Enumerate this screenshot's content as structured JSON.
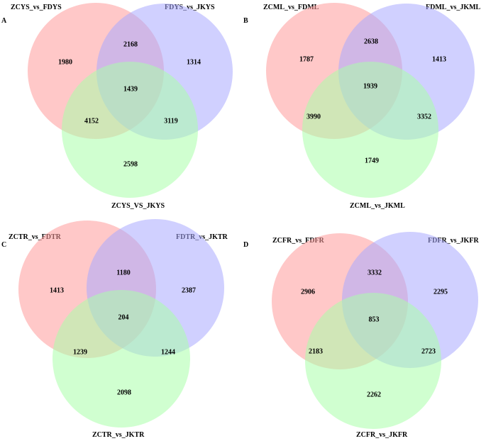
{
  "colors": {
    "set1": "#ff9a9a",
    "set2": "#a9a9ff",
    "set3": "#a9ffa9"
  },
  "panels": [
    {
      "letter": "A",
      "set1": "ZCYS_vs_FDYS",
      "set2": "FDYS_vs_JKYS",
      "set3": "ZCYS_VS_JKYS",
      "only1": "1980",
      "only2": "1314",
      "only3": "2598",
      "s12": "2168",
      "s13": "4152",
      "s23": "3119",
      "all": "1439"
    },
    {
      "letter": "B",
      "set1": "ZCML_vs_FDML",
      "set2": "FDML_vs_JKML",
      "set3": "ZCML_vs_JKML",
      "only1": "1787",
      "only2": "1413",
      "only3": "1749",
      "s12": "2638",
      "s13": "3990",
      "s23": "3352",
      "all": "1939"
    },
    {
      "letter": "C",
      "set1": "ZCTR_vs_FDTR",
      "set2": "FDTR_vs_JKTR",
      "set3": "ZCTR_vs_JKTR",
      "only1": "1413",
      "only2": "2387",
      "only3": "2098",
      "s12": "1180",
      "s13": "1239",
      "s23": "1244",
      "all": "204"
    },
    {
      "letter": "D",
      "set1": "ZCFR_vs_FDFR",
      "set2": "FDFR_vs_JKFR",
      "set3": "ZCFR_vs_JKFR",
      "only1": "2906",
      "only2": "2295",
      "only3": "2262",
      "s12": "3332",
      "s13": "2183",
      "s23": "2723",
      "all": "853"
    }
  ]
}
